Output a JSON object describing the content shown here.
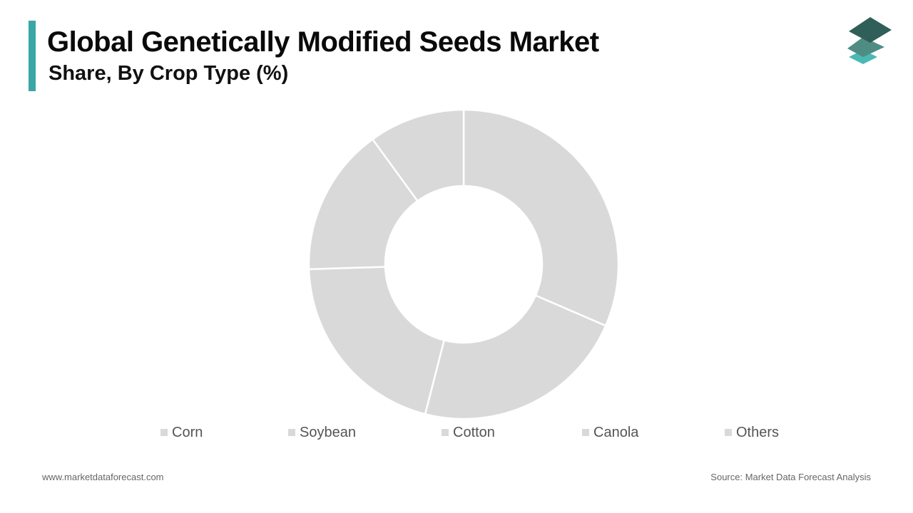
{
  "header": {
    "title": "Global Genetically Modified Seeds Market",
    "subtitle": "Share, By Crop Type (%)"
  },
  "brand": {
    "logo_icon": "layered-diamonds-logo-icon",
    "accent_color": "#3aa6a6",
    "logo_colors": [
      "#2f5f58",
      "#4f8c84",
      "#4bb8b4"
    ]
  },
  "chart_data": {
    "type": "pie",
    "donut": true,
    "title": "Global Genetically Modified Seeds Market",
    "subtitle": "Share, By Crop Type (%)",
    "categories": [
      "Corn",
      "Soybean",
      "Cotton",
      "Canola",
      "Others"
    ],
    "values": [
      31.5,
      22.5,
      20.5,
      15.5,
      10
    ],
    "colors": [
      "#d9d9d9",
      "#d9d9d9",
      "#d9d9d9",
      "#d9d9d9",
      "#d9d9d9"
    ],
    "separator_color": "#ffffff",
    "legend_position": "bottom"
  },
  "footer": {
    "website": "www.marketdataforecast.com",
    "source": "Source: Market Data Forecast Analysis"
  }
}
